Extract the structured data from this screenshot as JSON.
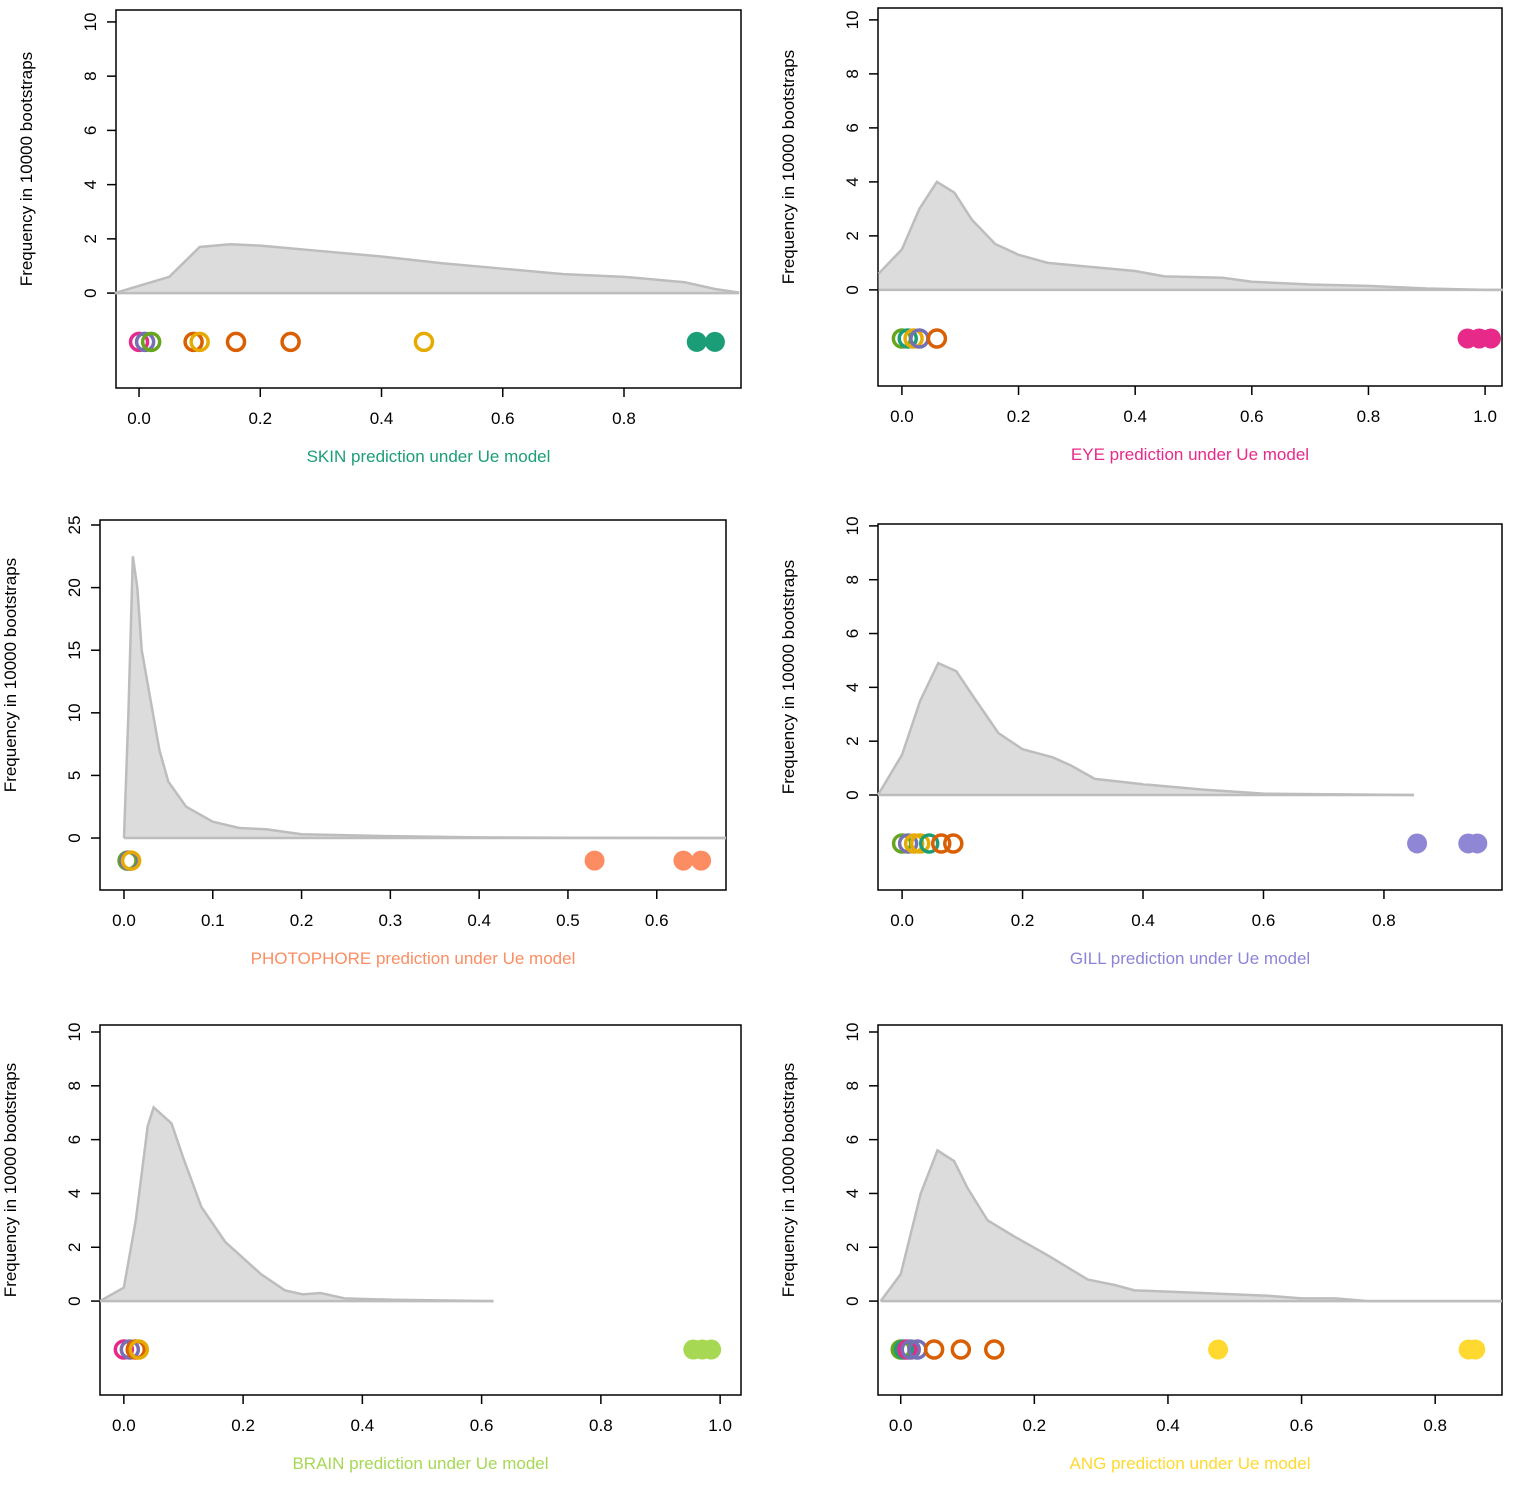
{
  "chart_data": [
    {
      "type": "area",
      "xlabel": "SKIN prediction under Ue model",
      "xlabel_color": "#1b9e77",
      "ylabel": "Frequency in 10000 bootstraps",
      "xlim": [
        -0.038,
        0.993
      ],
      "ylim": [
        -3.5,
        10.44
      ],
      "xticks": [
        {
          "value": 0,
          "label": "0.0"
        },
        0.2,
        0.4,
        0.6,
        0.8
      ],
      "yticks": [
        0,
        2,
        4,
        6,
        8,
        10
      ],
      "color": "#dcdcdc",
      "line_color": "#bdbdbd",
      "x": [
        -0.04,
        0.05,
        0.1,
        0.15,
        0.2,
        0.3,
        0.4,
        0.5,
        0.6,
        0.7,
        0.8,
        0.9,
        0.95,
        0.99
      ],
      "values": [
        0,
        0.6,
        1.7,
        1.8,
        1.75,
        1.55,
        1.35,
        1.1,
        0.9,
        0.7,
        0.6,
        0.4,
        0.15,
        0.02
      ],
      "points": {
        "y": -1.8,
        "x": [
          0.0,
          0.01,
          0.02,
          0.09,
          0.1,
          0.16,
          0.25,
          0.47,
          0.92,
          0.95
        ],
        "colors": [
          "#e7298a",
          "#7570b3",
          "#66a61e",
          "#d95f02",
          "#e6ab02",
          "#d95f02",
          "#d95f02",
          "#e6ab02",
          "#1b9e77",
          "#1b9e77"
        ],
        "filled": [
          false,
          false,
          false,
          false,
          false,
          false,
          false,
          false,
          true,
          true
        ]
      }
    },
    {
      "type": "area",
      "xlabel": "EYE prediction under Ue model",
      "xlabel_color": "#e7298a",
      "ylabel": "Frequency in 10000 bootstraps",
      "xlim": [
        -0.041,
        1.029
      ],
      "ylim": [
        -3.56,
        10.44
      ],
      "xticks": [
        {
          "value": 0,
          "label": "0.0"
        },
        0.2,
        0.4,
        0.6,
        0.8,
        {
          "value": 1,
          "label": "1.0"
        }
      ],
      "yticks": [
        0,
        2,
        4,
        6,
        8,
        10
      ],
      "color": "#dcdcdc",
      "line_color": "#bdbdbd",
      "x": [
        -0.04,
        0,
        0.03,
        0.06,
        0.09,
        0.12,
        0.16,
        0.2,
        0.25,
        0.3,
        0.4,
        0.45,
        0.55,
        0.6,
        0.7,
        0.8,
        0.9,
        1.0,
        1.03
      ],
      "values": [
        0.6,
        1.5,
        3.0,
        4.0,
        3.6,
        2.6,
        1.7,
        1.3,
        1.0,
        0.9,
        0.7,
        0.5,
        0.45,
        0.3,
        0.2,
        0.15,
        0.05,
        0,
        0
      ],
      "points": {
        "y": -1.8,
        "x": [
          0.0,
          0.01,
          0.02,
          0.03,
          0.06,
          0.97,
          0.99,
          1.01
        ],
        "colors": [
          "#66a61e",
          "#1b9e77",
          "#e6ab02",
          "#7570b3",
          "#d95f02",
          "#e7298a",
          "#e7298a",
          "#e7298a"
        ],
        "filled": [
          false,
          false,
          false,
          false,
          false,
          true,
          true,
          true
        ]
      }
    },
    {
      "type": "area",
      "xlabel": "PHOTOPHORE prediction under Ue model",
      "xlabel_color": "#fc8d62",
      "ylabel": "Frequency in 10000 bootstraps",
      "xlim": [
        -0.027,
        0.678
      ],
      "ylim": [
        -4.15,
        25.4
      ],
      "xticks": [
        {
          "value": 0,
          "label": "0.0"
        },
        0.1,
        0.2,
        0.3,
        0.4,
        0.5,
        0.6
      ],
      "yticks": [
        0,
        5,
        10,
        15,
        20,
        25
      ],
      "color": "#dcdcdc",
      "line_color": "#bdbdbd",
      "x": [
        0,
        0.005,
        0.01,
        0.015,
        0.02,
        0.03,
        0.04,
        0.05,
        0.07,
        0.1,
        0.13,
        0.16,
        0.2,
        0.3,
        0.4,
        0.5,
        0.678
      ],
      "values": [
        0,
        10,
        22.5,
        20,
        15,
        11,
        7,
        4.5,
        2.5,
        1.3,
        0.8,
        0.7,
        0.3,
        0.15,
        0.05,
        0.02,
        0
      ],
      "points": {
        "y": -1.8,
        "x": [
          0.004,
          0.006,
          0.008,
          0.53,
          0.63,
          0.65
        ],
        "colors": [
          "#66a61e",
          "#7570b3",
          "#e6ab02",
          "#fc8d62",
          "#fc8d62",
          "#fc8d62"
        ],
        "filled": [
          false,
          false,
          false,
          true,
          true,
          true
        ]
      }
    },
    {
      "type": "area",
      "xlabel": "GILL prediction under Ue model",
      "xlabel_color": "#8c84d6",
      "ylabel": "Frequency in 10000 bootstraps",
      "xlim": [
        -0.04,
        0.996
      ],
      "ylim": [
        -3.53,
        10.07
      ],
      "xticks": [
        {
          "value": 0,
          "label": "0.0"
        },
        0.2,
        0.4,
        0.6,
        0.8
      ],
      "yticks": [
        0,
        2,
        4,
        6,
        8,
        10
      ],
      "color": "#dcdcdc",
      "line_color": "#bdbdbd",
      "x": [
        -0.04,
        0,
        0.03,
        0.06,
        0.09,
        0.12,
        0.16,
        0.2,
        0.25,
        0.28,
        0.32,
        0.4,
        0.5,
        0.6,
        0.85
      ],
      "values": [
        0,
        1.5,
        3.5,
        4.9,
        4.6,
        3.6,
        2.3,
        1.7,
        1.4,
        1.1,
        0.6,
        0.4,
        0.2,
        0.05,
        0
      ],
      "points": {
        "y": -1.8,
        "x": [
          0.0,
          0.01,
          0.02,
          0.03,
          0.045,
          0.065,
          0.085,
          0.855,
          0.94,
          0.955
        ],
        "colors": [
          "#66a61e",
          "#7570b3",
          "#e6ab02",
          "#e6ab02",
          "#1b9e77",
          "#d95f02",
          "#d95f02",
          "#8f87d6",
          "#8f87d6",
          "#8f87d6"
        ],
        "filled": [
          false,
          false,
          false,
          false,
          false,
          false,
          false,
          true,
          true,
          true
        ]
      }
    },
    {
      "type": "area",
      "xlabel": "BRAIN prediction under Ue model",
      "xlabel_color": "#a6d854",
      "ylabel": "Frequency in 10000 bootstraps",
      "xlim": [
        -0.04,
        1.035
      ],
      "ylim": [
        -3.49,
        10.26
      ],
      "xticks": [
        {
          "value": 0,
          "label": "0.0"
        },
        0.2,
        0.4,
        0.6,
        0.8,
        {
          "value": 1,
          "label": "1.0"
        }
      ],
      "yticks": [
        0,
        2,
        4,
        6,
        8,
        10
      ],
      "color": "#dcdcdc",
      "line_color": "#bdbdbd",
      "x": [
        -0.04,
        0,
        0.02,
        0.04,
        0.05,
        0.08,
        0.1,
        0.13,
        0.17,
        0.2,
        0.23,
        0.27,
        0.3,
        0.33,
        0.37,
        0.45,
        0.62
      ],
      "values": [
        0,
        0.5,
        3,
        6.5,
        7.2,
        6.6,
        5.3,
        3.5,
        2.2,
        1.6,
        1.0,
        0.4,
        0.25,
        0.3,
        0.1,
        0.05,
        0
      ],
      "points": {
        "y": -1.8,
        "x": [
          0.0,
          0.01,
          0.02,
          0.025,
          0.955,
          0.97,
          0.985
        ],
        "colors": [
          "#e7298a",
          "#7570b3",
          "#d95f02",
          "#e6ab02",
          "#a6d854",
          "#a6d854",
          "#a6d854"
        ],
        "filled": [
          false,
          false,
          false,
          false,
          true,
          true,
          true
        ]
      }
    },
    {
      "type": "area",
      "xlabel": "ANG prediction under Ue model",
      "xlabel_color": "#ffd92f",
      "ylabel": "Frequency in 10000 bootstraps",
      "xlim": [
        -0.034,
        0.9
      ],
      "ylim": [
        -3.49,
        10.26
      ],
      "xticks": [
        {
          "value": 0,
          "label": "0.0"
        },
        0.2,
        0.4,
        0.6,
        0.8
      ],
      "yticks": [
        0,
        2,
        4,
        6,
        8,
        10
      ],
      "color": "#dcdcdc",
      "line_color": "#bdbdbd",
      "x": [
        -0.03,
        0,
        0.03,
        0.055,
        0.08,
        0.1,
        0.13,
        0.17,
        0.22,
        0.28,
        0.32,
        0.35,
        0.45,
        0.55,
        0.6,
        0.65,
        0.7,
        0.9
      ],
      "values": [
        0,
        1,
        4,
        5.6,
        5.2,
        4.2,
        3.0,
        2.4,
        1.7,
        0.8,
        0.6,
        0.4,
        0.3,
        0.2,
        0.1,
        0.1,
        0,
        0
      ],
      "points": {
        "y": -1.8,
        "x": [
          0.0,
          0.005,
          0.01,
          0.015,
          0.025,
          0.05,
          0.09,
          0.14,
          0.475,
          0.85,
          0.86
        ],
        "colors": [
          "#66a61e",
          "#1b9e77",
          "#e7298a",
          "#7570b3",
          "#7570b3",
          "#d95f02",
          "#d95f02",
          "#d95f02",
          "#ffd92f",
          "#ffd92f",
          "#ffd92f"
        ],
        "filled": [
          false,
          false,
          false,
          false,
          false,
          false,
          false,
          false,
          true,
          true,
          true
        ]
      }
    }
  ]
}
